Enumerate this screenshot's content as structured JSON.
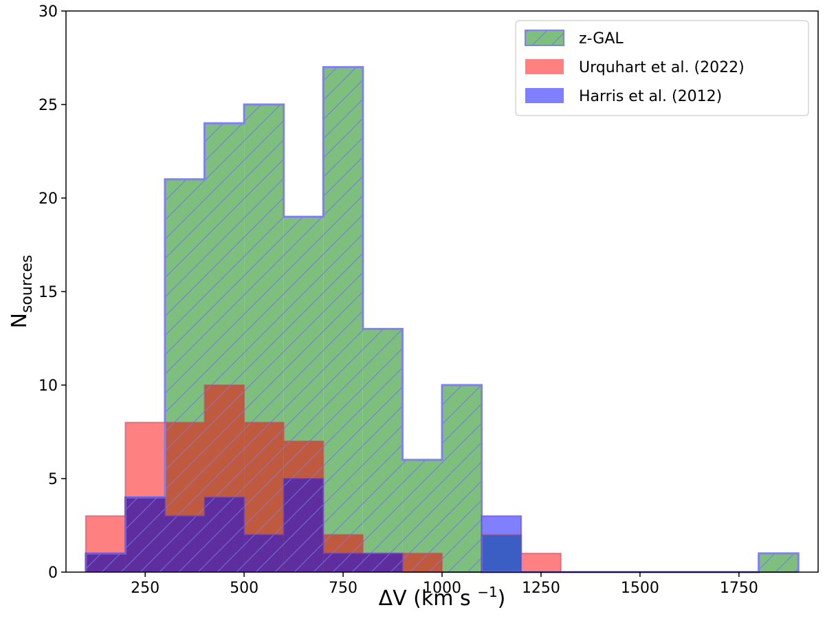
{
  "chart_data": {
    "type": "bar",
    "subtype": "histogram",
    "bin_edges": [
      100,
      200,
      300,
      400,
      500,
      600,
      700,
      800,
      900,
      1000,
      1100,
      1200,
      1300,
      1400,
      1500,
      1600,
      1700,
      1800,
      1900
    ],
    "series": [
      {
        "name": "z-GAL",
        "values": [
          1,
          4,
          21,
          24,
          25,
          19,
          27,
          13,
          6,
          10,
          0,
          0,
          0,
          0,
          0,
          0,
          0,
          1
        ],
        "fill": "#7ebf7e",
        "edge": "#8080f0",
        "hatch": "/"
      },
      {
        "name": "Urquhart et al. (2022)",
        "values": [
          3,
          8,
          8,
          10,
          8,
          7,
          2,
          1,
          1,
          0,
          2,
          1,
          0,
          0,
          0,
          0,
          0,
          0
        ],
        "fill": "#ff8080",
        "stack_fill": "#bf5a3f"
      },
      {
        "name": "Harris et al. (2012)",
        "values": [
          1,
          4,
          3,
          4,
          2,
          5,
          1,
          1,
          0,
          0,
          3,
          0,
          0,
          0,
          0,
          0,
          0,
          0
        ],
        "fill": "#8080ff",
        "stack_fill": "#5e2e9e"
      }
    ],
    "xlabel": "ΔV (km s",
    "xlabel_sup": "−1",
    "xlabel_end": ")",
    "ylabel": "N",
    "ylabel_sub": "sources",
    "xlim": [
      50,
      1950
    ],
    "ylim": [
      0,
      30
    ],
    "xticks": [
      250,
      500,
      750,
      1000,
      1250,
      1500,
      1750
    ],
    "yticks": [
      0,
      5,
      10,
      15,
      20,
      25,
      30
    ],
    "legend_position": "top-right",
    "grid": false
  }
}
